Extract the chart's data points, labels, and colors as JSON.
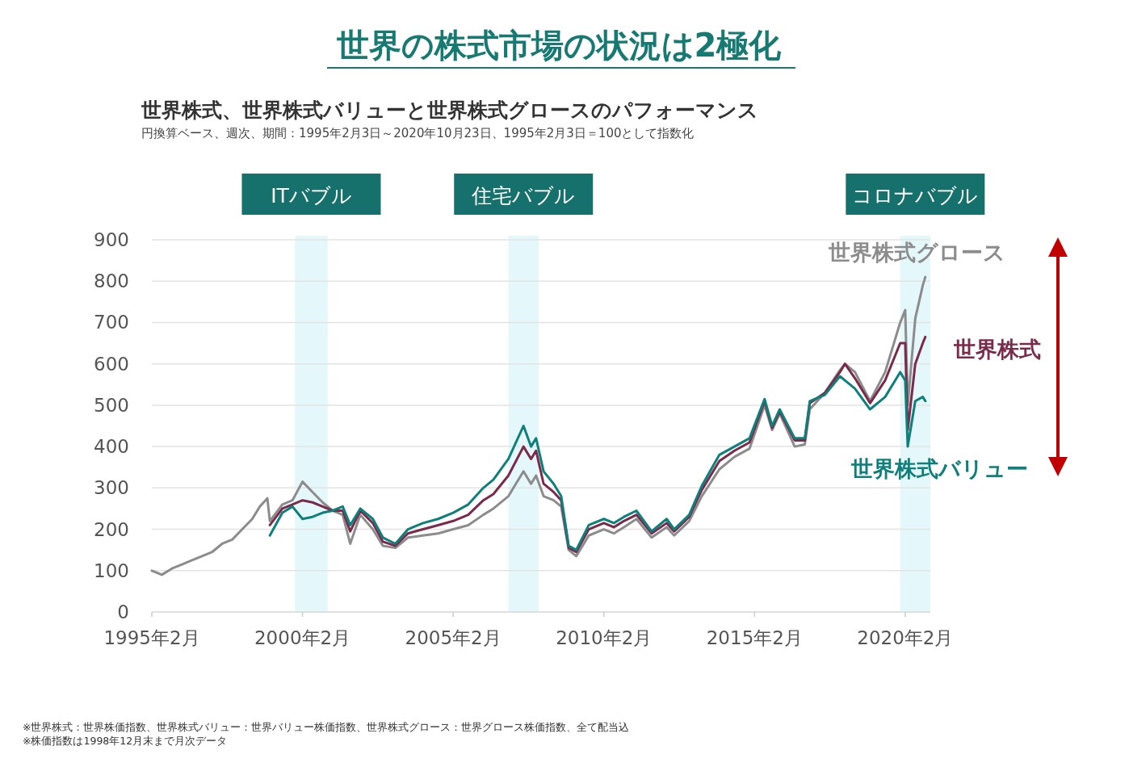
{
  "chart_data": {
    "type": "line",
    "title": "世界の株式市場の状況は2極化",
    "subtitle": "世界株式、世界株式バリューと世界株式グロースのパフォーマンス",
    "x": [
      "1995-02",
      "1995-06",
      "1995-10",
      "1996-02",
      "1996-06",
      "1996-10",
      "1997-02",
      "1997-06",
      "1997-10",
      "1998-02",
      "1998-06",
      "1998-09",
      "1998-12",
      "1999-01",
      "1999-06",
      "1999-10",
      "2000-02",
      "2000-06",
      "2000-10",
      "2001-02",
      "2001-06",
      "2001-09",
      "2002-01",
      "2002-06",
      "2002-10",
      "2003-03",
      "2003-08",
      "2004-02",
      "2004-08",
      "2005-02",
      "2005-08",
      "2006-02",
      "2006-06",
      "2006-12",
      "2007-06",
      "2007-09",
      "2007-11",
      "2008-02",
      "2008-06",
      "2008-09",
      "2008-12",
      "2009-03",
      "2009-08",
      "2010-02",
      "2010-06",
      "2010-10",
      "2011-03",
      "2011-09",
      "2012-03",
      "2012-06",
      "2012-12",
      "2013-05",
      "2013-12",
      "2014-06",
      "2014-12",
      "2015-06",
      "2015-09",
      "2015-12",
      "2016-06",
      "2016-10",
      "2016-12",
      "2017-06",
      "2017-12",
      "2018-02",
      "2018-06",
      "2018-12",
      "2019-06",
      "2019-12",
      "2020-02",
      "2020-03",
      "2020-06",
      "2020-09",
      "2020-10"
    ],
    "series": [
      {
        "name": "世界株式グロース",
        "color": "#8c8c8c",
        "values": [
          100,
          90,
          105,
          115,
          125,
          135,
          145,
          165,
          175,
          200,
          225,
          255,
          275,
          220,
          260,
          270,
          315,
          290,
          265,
          245,
          235,
          165,
          235,
          200,
          160,
          155,
          180,
          185,
          190,
          200,
          210,
          235,
          250,
          280,
          340,
          310,
          330,
          280,
          270,
          255,
          150,
          135,
          185,
          200,
          190,
          205,
          225,
          180,
          205,
          185,
          220,
          280,
          345,
          375,
          395,
          500,
          440,
          480,
          400,
          405,
          490,
          530,
          585,
          600,
          580,
          510,
          580,
          700,
          730,
          500,
          710,
          790,
          810
        ]
      },
      {
        "name": "世界株式",
        "color": "#7a2a4a",
        "values": [
          null,
          null,
          null,
          null,
          null,
          null,
          null,
          null,
          null,
          null,
          null,
          null,
          null,
          210,
          250,
          260,
          270,
          265,
          255,
          245,
          245,
          195,
          245,
          215,
          170,
          160,
          190,
          200,
          210,
          220,
          235,
          270,
          285,
          330,
          400,
          370,
          390,
          310,
          290,
          270,
          155,
          145,
          200,
          215,
          205,
          220,
          235,
          190,
          215,
          195,
          230,
          295,
          365,
          390,
          410,
          510,
          445,
          485,
          415,
          415,
          505,
          530,
          580,
          600,
          565,
          505,
          560,
          650,
          650,
          440,
          600,
          650,
          665
        ]
      },
      {
        "name": "世界株式バリュー",
        "color": "#0e7f7a",
        "values": [
          null,
          null,
          null,
          null,
          null,
          null,
          null,
          null,
          null,
          null,
          null,
          null,
          null,
          185,
          240,
          255,
          225,
          230,
          240,
          245,
          255,
          210,
          250,
          225,
          180,
          165,
          200,
          215,
          225,
          240,
          260,
          300,
          320,
          370,
          450,
          400,
          420,
          340,
          310,
          280,
          160,
          150,
          210,
          225,
          215,
          230,
          245,
          195,
          225,
          200,
          235,
          305,
          380,
          400,
          420,
          515,
          450,
          490,
          420,
          420,
          510,
          525,
          570,
          560,
          540,
          490,
          520,
          580,
          560,
          400,
          510,
          520,
          510
        ]
      }
    ],
    "xlim": [
      "1995-02",
      "2020-12"
    ],
    "xticks": [
      {
        "value": "1995-02",
        "label": "1995年2月"
      },
      {
        "value": "2000-02",
        "label": "2000年2月"
      },
      {
        "value": "2005-02",
        "label": "2005年2月"
      },
      {
        "value": "2010-02",
        "label": "2010年2月"
      },
      {
        "value": "2015-02",
        "label": "2015年2月"
      },
      {
        "value": "2020-02",
        "label": "2020年2月"
      }
    ],
    "ylim": [
      0,
      900
    ],
    "yticks": [
      0,
      100,
      200,
      300,
      400,
      500,
      600,
      700,
      800,
      900
    ],
    "grid": "y",
    "bands": [
      {
        "axis": "x",
        "from": "1999-11",
        "to": "2000-12",
        "label": "ITバブル",
        "color": "#e4f7fa"
      },
      {
        "axis": "x",
        "from": "2006-12",
        "to": "2007-12",
        "label": "住宅バブル",
        "color": "#e4f7fa"
      },
      {
        "axis": "x",
        "from": "2019-12",
        "to": "2020-12",
        "label": "コロナバブル",
        "color": "#e4f7fa"
      }
    ],
    "annotations": [
      "円換算ベース、週次、期間：1995年2月3日～2020年10月23日、1995年2月3日＝100として指数化",
      "※世界株式：世界株価指数、世界株式バリュー：世界バリュー株価指数、世界株式グロース：世界グロース株価指数、全て配当込",
      "※株価指数は1998年12月末まで月次データ"
    ]
  }
}
